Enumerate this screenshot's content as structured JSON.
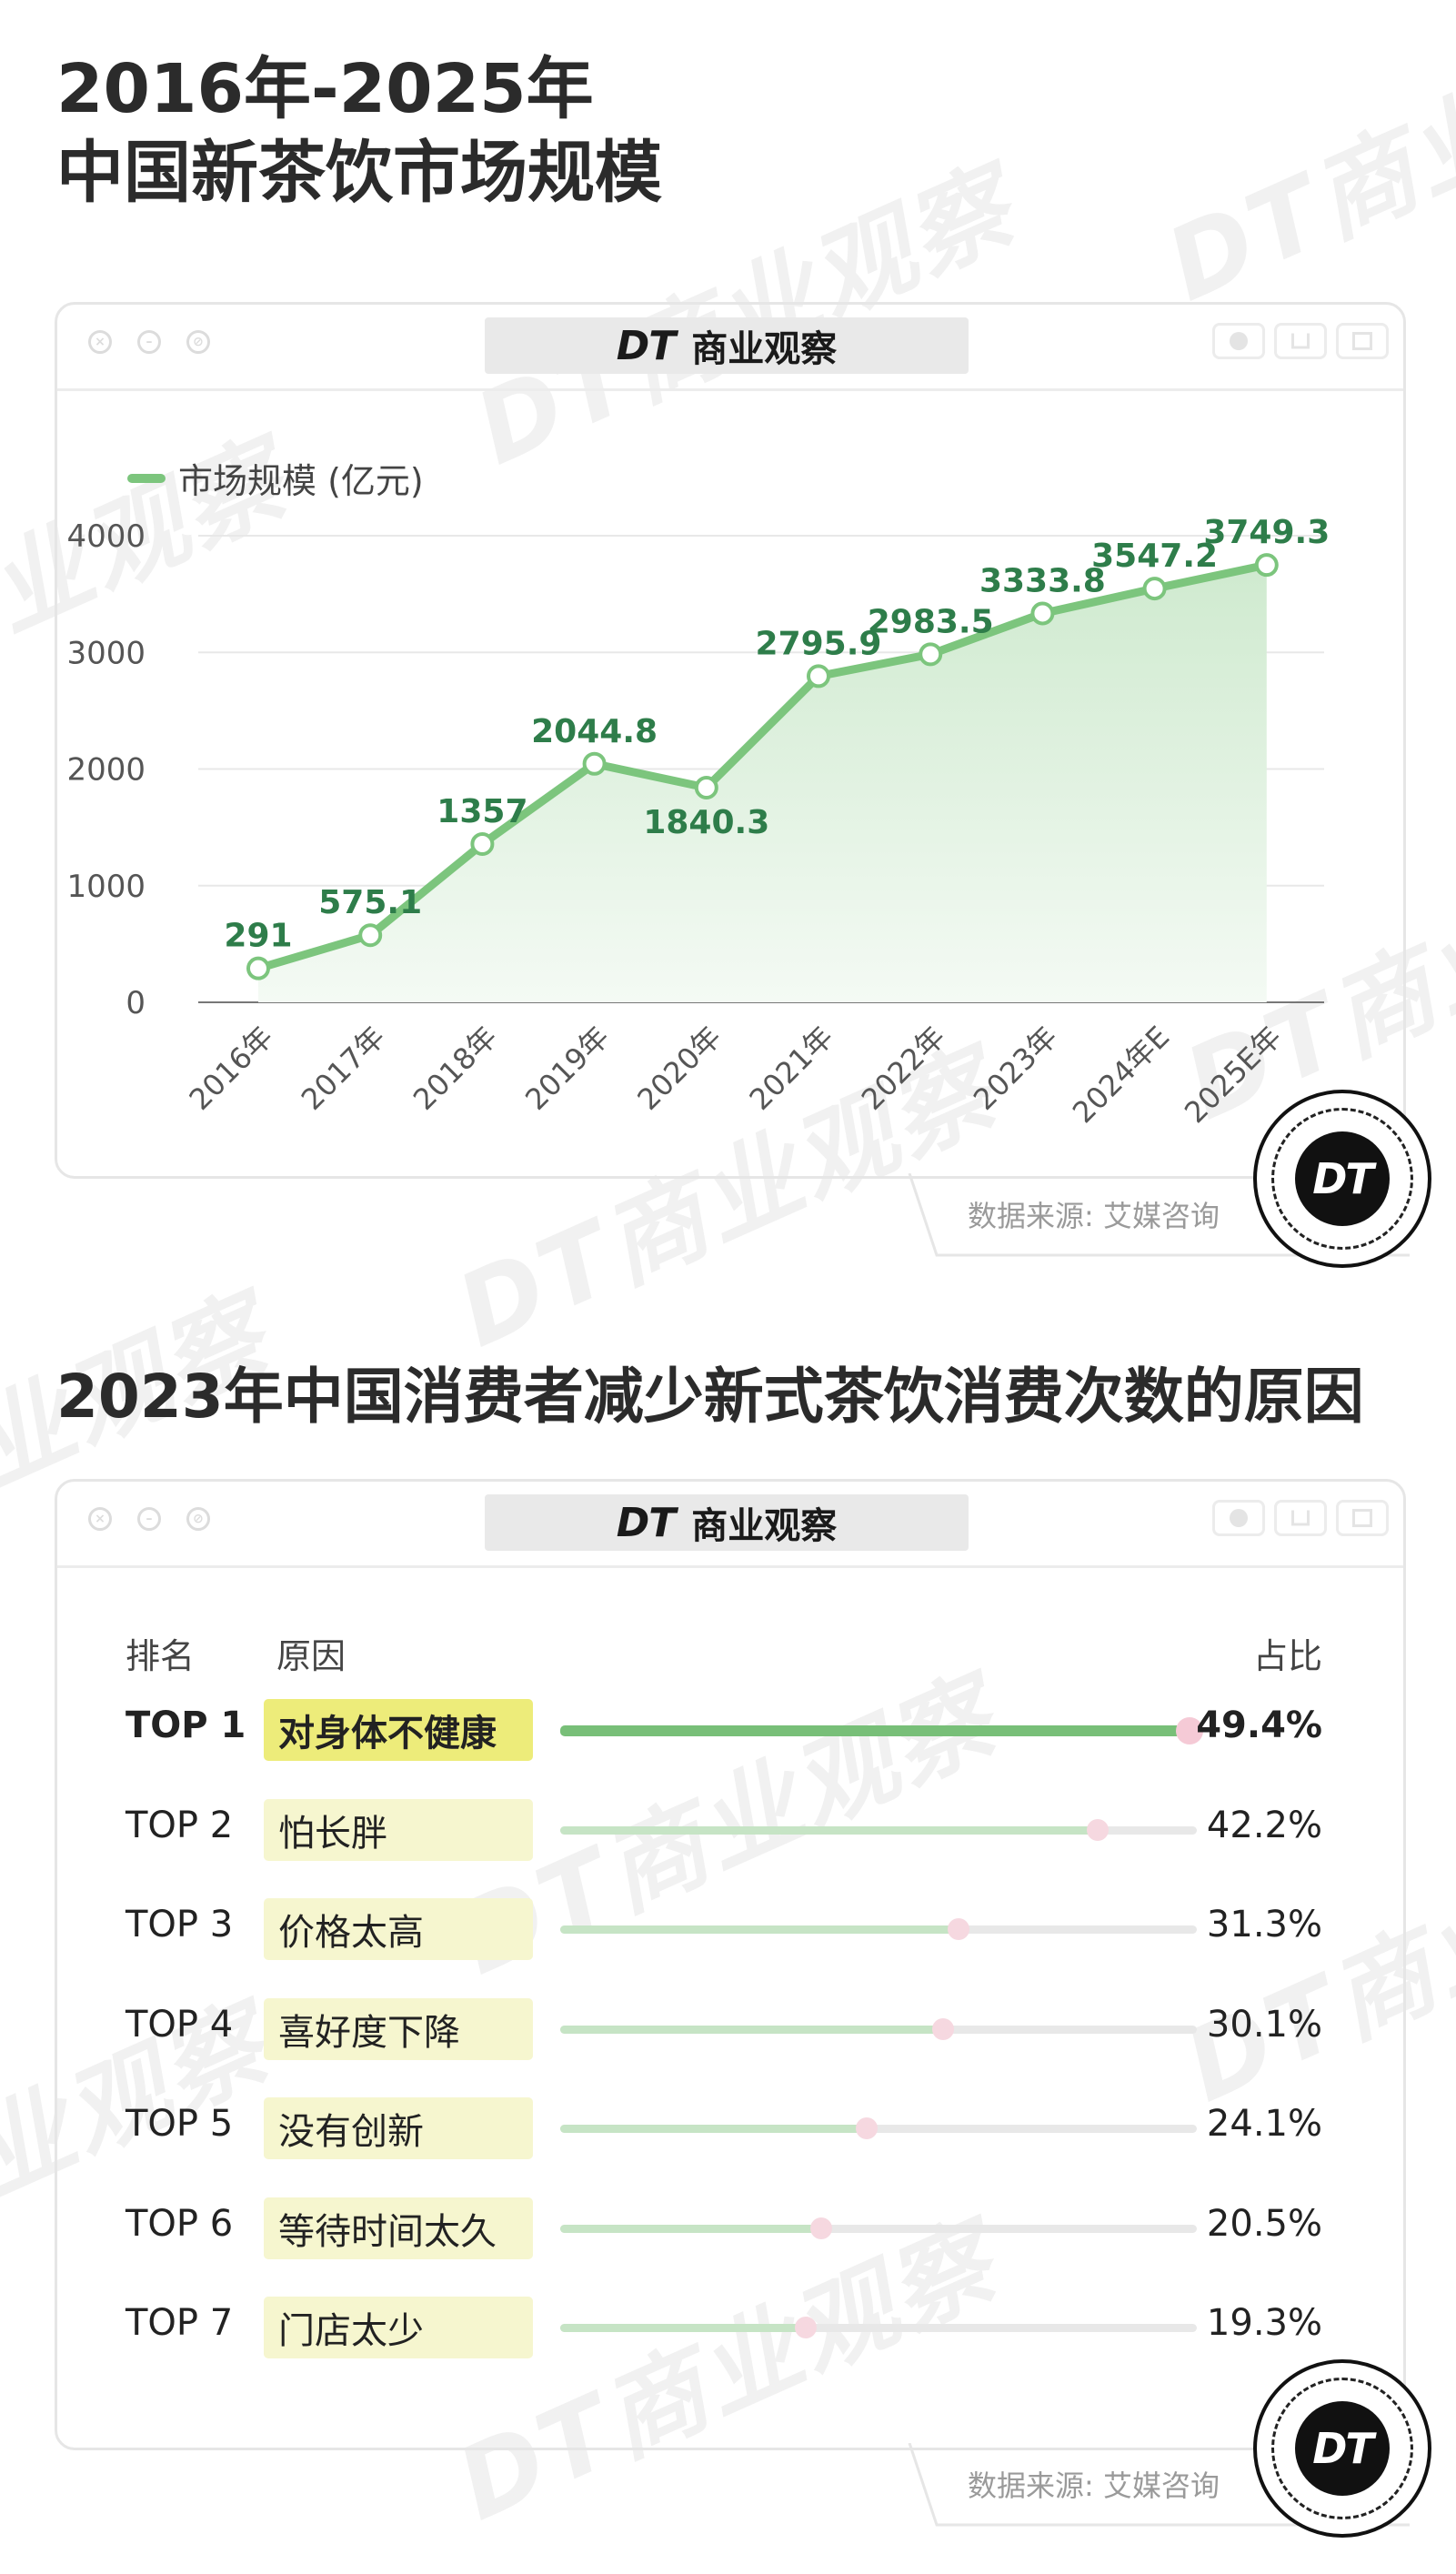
{
  "watermark_text": "DT商业观察",
  "brand": {
    "logo": "DT",
    "name": "商业观察"
  },
  "section1": {
    "title_line1": "2016年-2025年",
    "title_line2": "中国新茶饮市场规模",
    "source": "数据来源: 艾媒咨询"
  },
  "section2": {
    "title": "2023年中国消费者减少新式茶饮消费次数的原因",
    "source": "数据来源: 艾媒咨询",
    "header": {
      "rank": "排名",
      "reason": "原因",
      "share": "占比"
    }
  },
  "colors": {
    "line": "#7cc57d",
    "label": "#2e7d4a",
    "area": "#d8eed8",
    "highlight": "#edec7a",
    "chip": "#f6f6cf"
  },
  "icons": [
    "close-icon",
    "minimize-icon",
    "maximize-icon",
    "record-icon",
    "share-icon",
    "window-icon",
    "dt-logo-icon"
  ],
  "chart_data": [
    {
      "type": "area",
      "title": "中国新茶饮市场规模",
      "series": [
        {
          "name": "市场规模 (亿元)",
          "values": [
            291,
            575.1,
            1357,
            2044.8,
            1840.3,
            2795.9,
            2983.5,
            3333.8,
            3547.2,
            3749.3
          ]
        }
      ],
      "categories": [
        "2016年",
        "2017年",
        "2018年",
        "2019年",
        "2020年",
        "2021年",
        "2022年",
        "2023年",
        "2024年E",
        "2025E年"
      ],
      "value_labels": [
        "291",
        "575.1",
        "1357",
        "2044.8",
        "1840.3",
        "2795.9",
        "2983.5",
        "3333.8",
        "3547.2",
        "3749.3"
      ],
      "yticks": [
        0,
        1000,
        2000,
        3000,
        4000
      ],
      "ylim": [
        0,
        4000
      ],
      "grid": true,
      "legend": "top-left"
    },
    {
      "type": "bar",
      "orientation": "horizontal",
      "title": "2023年中国消费者减少新式茶饮消费次数的原因",
      "rows": [
        {
          "rank": "TOP 1",
          "reason": "对身体不健康",
          "value": 49.4,
          "label": "49.4%"
        },
        {
          "rank": "TOP 2",
          "reason": "怕长胖",
          "value": 42.2,
          "label": "42.2%"
        },
        {
          "rank": "TOP 3",
          "reason": "价格太高",
          "value": 31.3,
          "label": "31.3%"
        },
        {
          "rank": "TOP 4",
          "reason": "喜好度下降",
          "value": 30.1,
          "label": "30.1%"
        },
        {
          "rank": "TOP 5",
          "reason": "没有创新",
          "value": 24.1,
          "label": "24.1%"
        },
        {
          "rank": "TOP 6",
          "reason": "等待时间太久",
          "value": 20.5,
          "label": "20.5%"
        },
        {
          "rank": "TOP 7",
          "reason": "门店太少",
          "value": 19.3,
          "label": "19.3%"
        }
      ],
      "xlim": [
        0,
        50
      ]
    }
  ]
}
